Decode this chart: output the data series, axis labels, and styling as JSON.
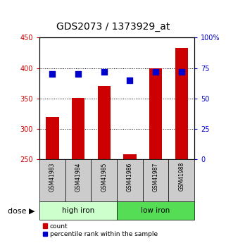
{
  "title": "GDS2073 / 1373929_at",
  "samples": [
    "GSM41983",
    "GSM41984",
    "GSM41985",
    "GSM41986",
    "GSM41987",
    "GSM41988"
  ],
  "counts": [
    320,
    351,
    370,
    258,
    400,
    433
  ],
  "percentile_ranks": [
    70,
    70,
    72,
    65,
    72,
    72
  ],
  "count_baseline": 250,
  "left_ylim": [
    250,
    450
  ],
  "left_yticks": [
    250,
    300,
    350,
    400,
    450
  ],
  "right_ylim": [
    0,
    100
  ],
  "right_yticks": [
    0,
    25,
    50,
    75,
    100
  ],
  "right_yticklabels": [
    "0",
    "25",
    "50",
    "75",
    "100%"
  ],
  "left_color": "#cc0000",
  "right_color": "#0000cc",
  "bar_color": "#cc0000",
  "dot_color": "#0000cc",
  "groups": [
    {
      "label": "high iron",
      "indices": [
        0,
        1,
        2
      ],
      "bg_color": "#ccffcc"
    },
    {
      "label": "low iron",
      "indices": [
        3,
        4,
        5
      ],
      "bg_color": "#55dd55"
    }
  ],
  "dose_label": "dose",
  "legend_count": "count",
  "legend_percentile": "percentile rank within the sample",
  "sample_bg_color": "#cccccc",
  "bar_width": 0.5,
  "dot_size": 30,
  "title_fontsize": 10,
  "tick_fontsize": 7,
  "sample_fontsize": 5.5,
  "dose_fontsize": 7.5,
  "legend_fontsize": 6.5
}
